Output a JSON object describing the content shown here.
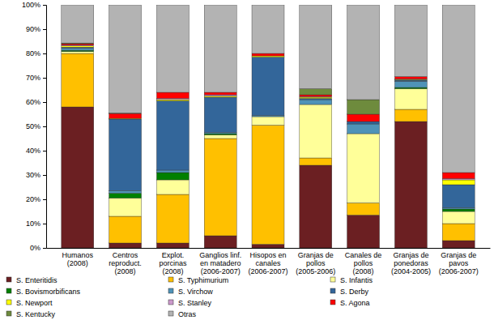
{
  "chart_data": {
    "type": "bar",
    "stacked": true,
    "grid": false,
    "legend": "bottom",
    "categories": [
      "Humanos\n(2008)",
      "Centros\nreproduct.\n(2008)",
      "Explot.\nporcinas\n(2008)",
      "Ganglios linf.\nen matadero\n(2006-2007)",
      "Hisopos en\ncanales\n(2006-2007)",
      "Granjas de\npollos\n(2005-2006)",
      "Canales de\npollos\n(2008)",
      "Granjas de\nponedoras\n(2004-2005)",
      "Granjas de\npavos\n(2006-2007)"
    ],
    "ylim": [
      0,
      100
    ],
    "yticks": [
      {
        "value": 0,
        "label": "0%"
      },
      {
        "value": 10,
        "label": "10%"
      },
      {
        "value": 20,
        "label": "20%"
      },
      {
        "value": 30,
        "label": "30%"
      },
      {
        "value": 40,
        "label": "40%"
      },
      {
        "value": 50,
        "label": "50%"
      },
      {
        "value": 60,
        "label": "60%"
      },
      {
        "value": 70,
        "label": "70%"
      },
      {
        "value": 80,
        "label": "80%"
      },
      {
        "value": 90,
        "label": "90%"
      },
      {
        "value": 100,
        "label": "100%"
      }
    ],
    "series": [
      {
        "name": "S. Enteritidis",
        "color": "#6b1f22",
        "values": [
          58,
          2,
          2,
          5,
          1.5,
          34,
          13.5,
          52,
          3
        ]
      },
      {
        "name": "S. Typhimurium",
        "color": "#ffc000",
        "values": [
          22,
          11,
          20,
          40,
          49,
          3,
          5,
          5,
          7
        ]
      },
      {
        "name": "S. Infantis",
        "color": "#ffff99",
        "values": [
          0.8,
          7.5,
          6,
          1.5,
          3.5,
          22,
          28.5,
          8.5,
          5
        ]
      },
      {
        "name": "S. Bovismorbificans",
        "color": "#008000",
        "values": [
          0.5,
          2,
          3,
          0.5,
          0,
          0,
          0,
          0.5,
          1
        ]
      },
      {
        "name": "S. Virchow",
        "color": "#4f93b8",
        "values": [
          0.8,
          1,
          1,
          0.5,
          0.5,
          2,
          4,
          2.5,
          0.5
        ]
      },
      {
        "name": "S. Derby",
        "color": "#33669a",
        "values": [
          0.5,
          29.5,
          28.5,
          14.5,
          24,
          0.5,
          1,
          0.5,
          9.5
        ]
      },
      {
        "name": "S. Newport",
        "color": "#ffff00",
        "values": [
          0.5,
          0.3,
          0.5,
          0.5,
          0.5,
          0.5,
          0,
          0.3,
          2
        ]
      },
      {
        "name": "S. Stanley",
        "color": "#cc99cc",
        "values": [
          0.3,
          0,
          0.5,
          0.5,
          0,
          0.3,
          0,
          0.2,
          0.5
        ]
      },
      {
        "name": "S. Agona",
        "color": "#ff0000",
        "values": [
          0.6,
          2,
          2.5,
          1,
          1,
          0.7,
          3,
          1,
          2.5
        ]
      },
      {
        "name": "S. Kentucky",
        "color": "#6e8b3d",
        "values": [
          0.3,
          0.2,
          0,
          0,
          0,
          2.5,
          6,
          0,
          0
        ]
      },
      {
        "name": "Otras",
        "color": "#b3b3b3",
        "values": [
          15.7,
          44.5,
          36,
          36,
          20,
          34.5,
          39,
          29.5,
          69
        ]
      }
    ]
  }
}
